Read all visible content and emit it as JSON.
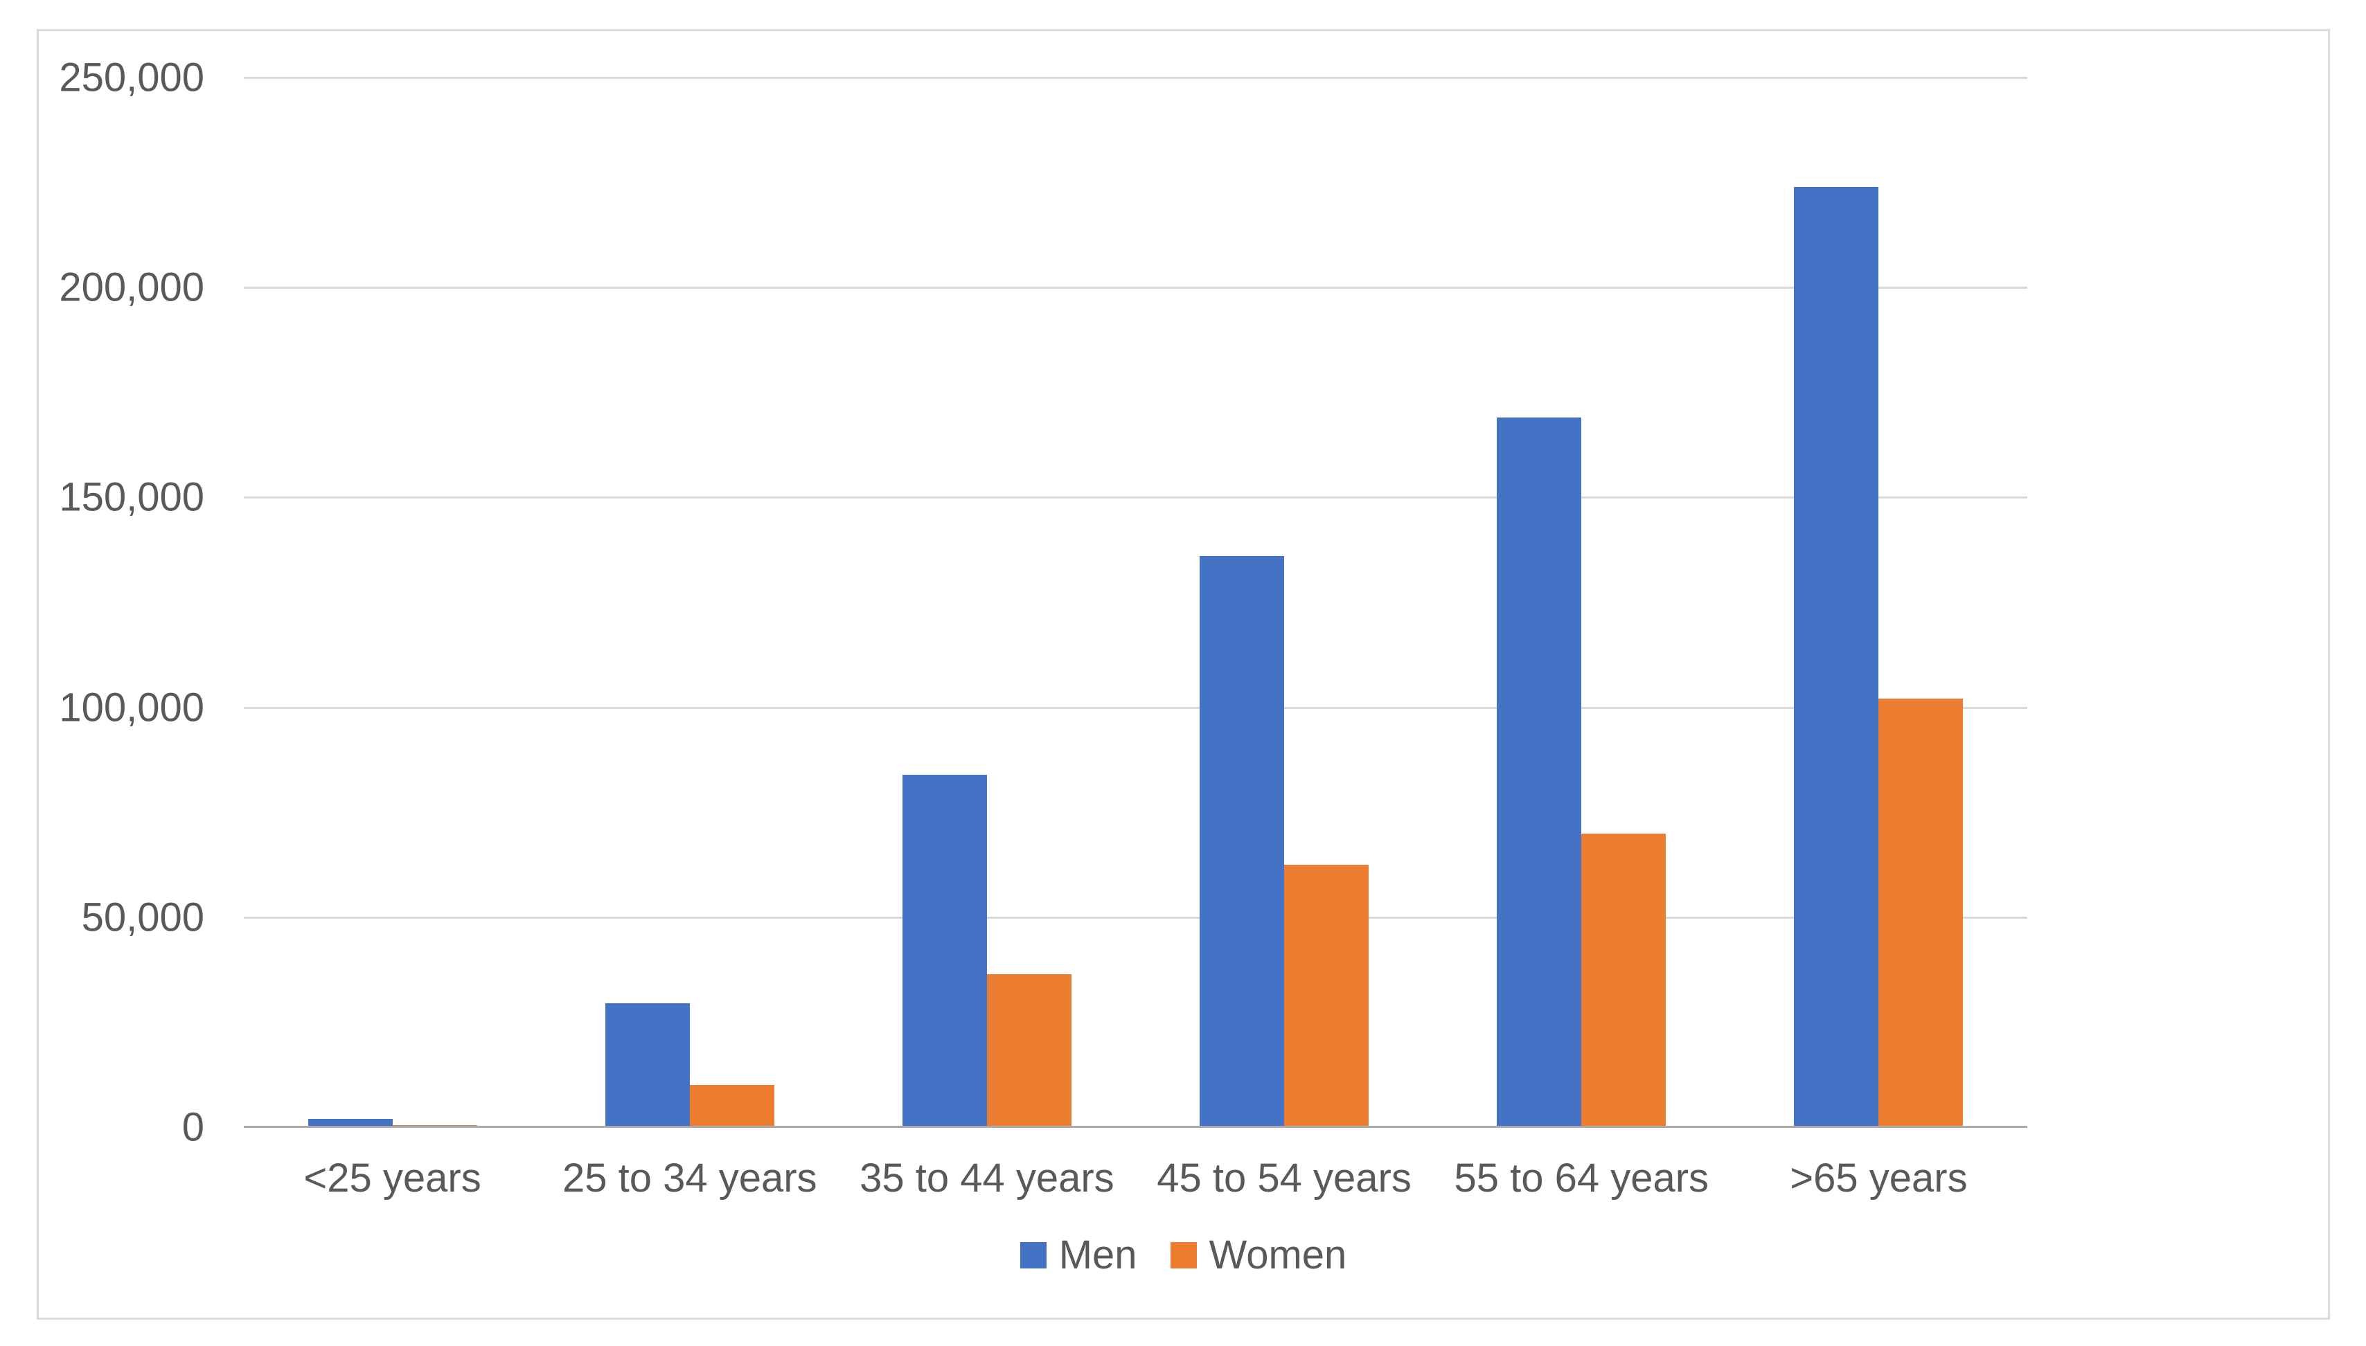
{
  "chart_data": {
    "type": "bar",
    "title": "",
    "xlabel": "",
    "ylabel": "",
    "categories": [
      "<25 years",
      "25 to 34 years",
      "35 to 44 years",
      "45 to 54 years",
      "55 to 64 years",
      ">65 years"
    ],
    "series": [
      {
        "name": "Men",
        "color": "#4472c4",
        "values": [
          2000,
          29500,
          84000,
          136000,
          169000,
          224000
        ]
      },
      {
        "name": "Women",
        "color": "#ed7d31",
        "values": [
          500,
          10000,
          36500,
          62500,
          70000,
          102000
        ]
      }
    ],
    "ylim": [
      0,
      250000
    ],
    "ytick_step": 50000,
    "ytick_labels": [
      "0",
      "50,000",
      "100,000",
      "150,000",
      "200,000",
      "250,000"
    ],
    "grid": true,
    "legend_position": "bottom",
    "colors": {
      "gridline": "#d9d9d9",
      "axis_line": "#ababab",
      "label_text": "#595959",
      "chart_border": "#dadada",
      "background": "#ffffff"
    }
  }
}
